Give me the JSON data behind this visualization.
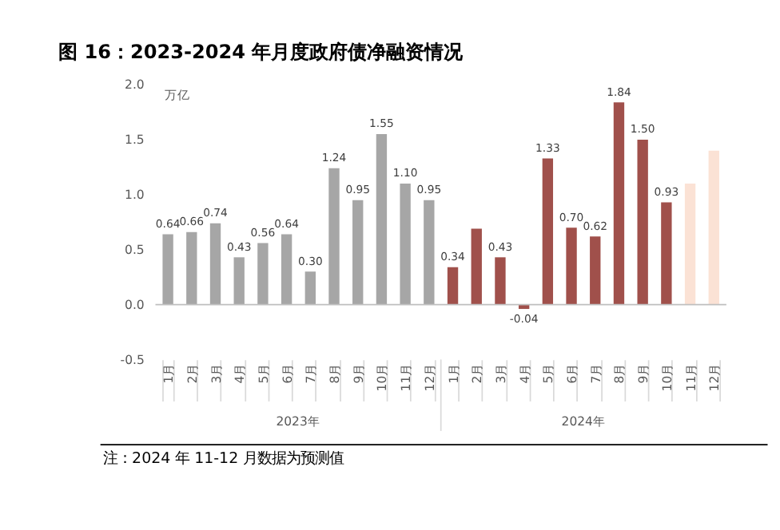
{
  "chart_data": {
    "type": "bar",
    "title": "图 16：2023-2024 年月度政府债净融资情况",
    "ylabel": "万亿",
    "categories": [
      "1月",
      "2月",
      "3月",
      "4月",
      "5月",
      "6月",
      "7月",
      "8月",
      "9月",
      "10月",
      "11月",
      "12月",
      "1月",
      "2月",
      "3月",
      "4月",
      "5月",
      "6月",
      "7月",
      "8月",
      "9月",
      "10月",
      "11月",
      "12月"
    ],
    "values": [
      0.64,
      0.66,
      0.74,
      0.43,
      0.56,
      0.64,
      0.3,
      1.24,
      0.95,
      1.55,
      1.1,
      0.95,
      0.34,
      0.69,
      0.43,
      -0.04,
      1.33,
      0.7,
      0.62,
      1.84,
      1.5,
      0.93,
      1.1,
      1.4
    ],
    "value_labels": [
      "0.64",
      "0.66",
      "0.74",
      "0.43",
      "0.56",
      "0.64",
      "0.30",
      "1.24",
      "0.95",
      "1.55",
      "1.10",
      "0.95",
      "0.34",
      null,
      "0.43",
      "-0.04",
      "1.33",
      "0.70",
      "0.62",
      "1.84",
      "1.50",
      "0.93",
      null,
      null
    ],
    "colors": [
      "#a6a6a6",
      "#a6a6a6",
      "#a6a6a6",
      "#a6a6a6",
      "#a6a6a6",
      "#a6a6a6",
      "#a6a6a6",
      "#a6a6a6",
      "#a6a6a6",
      "#a6a6a6",
      "#a6a6a6",
      "#a6a6a6",
      "#a0504b",
      "#a0504b",
      "#a0504b",
      "#a0504b",
      "#a0504b",
      "#a0504b",
      "#a0504b",
      "#a0504b",
      "#a0504b",
      "#a0504b",
      "#fbe2d5",
      "#fbe2d5"
    ],
    "ylim": [
      -0.5,
      2.0
    ],
    "yticks": [
      {
        "value": -0.5,
        "label": "-0.5"
      },
      {
        "value": 0,
        "label": "0.0"
      },
      {
        "value": 0.5,
        "label": "0.5"
      },
      {
        "value": 1,
        "label": "1.0"
      },
      {
        "value": 1.5,
        "label": "1.5"
      },
      {
        "value": 2,
        "label": "2.0"
      }
    ],
    "annotations": [
      "2023年",
      "2024年",
      "注：2024 年 11-12 月数据为预测值"
    ]
  }
}
